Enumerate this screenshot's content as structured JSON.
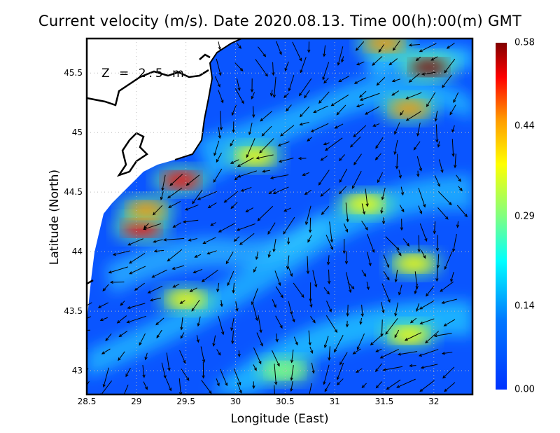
{
  "title": "Current velocity (m/s). Date 2020.08.13. Time 00(h):00(m) GMT",
  "depth_label": "Z = 2.5 m",
  "x_axis": {
    "label": "Longitude (East)",
    "ticks": [
      "28.5",
      "29",
      "29.5",
      "30",
      "30.5",
      "31",
      "31.5",
      "32"
    ],
    "range": [
      28.5,
      32.39
    ]
  },
  "y_axis": {
    "label": "Latitude (North)",
    "ticks": [
      "45.5",
      "45",
      "44.5",
      "44",
      "43.5",
      "43"
    ],
    "range": [
      42.8,
      45.79
    ]
  },
  "colorbar": {
    "ticks": [
      "0.58",
      "0.44",
      "0.29",
      "0.14",
      "0.00"
    ],
    "min": 0.0,
    "max": 0.58,
    "colors": [
      "#0033ff",
      "#0099ff",
      "#00ffff",
      "#80ff80",
      "#ffff00",
      "#ff9900",
      "#ff0000",
      "#800000"
    ]
  },
  "hotspots": [
    {
      "lon": 31.95,
      "lat": 45.55,
      "speed": 0.55
    },
    {
      "lon": 31.75,
      "lat": 45.2,
      "speed": 0.45
    },
    {
      "lon": 29.45,
      "lat": 44.6,
      "speed": 0.52
    },
    {
      "lon": 29.05,
      "lat": 44.2,
      "speed": 0.5
    },
    {
      "lon": 29.1,
      "lat": 44.35,
      "speed": 0.42
    },
    {
      "lon": 31.75,
      "lat": 43.3,
      "speed": 0.36
    },
    {
      "lon": 31.8,
      "lat": 43.9,
      "speed": 0.35
    },
    {
      "lon": 31.5,
      "lat": 45.75,
      "speed": 0.38
    },
    {
      "lon": 30.2,
      "lat": 44.8,
      "speed": 0.32
    },
    {
      "lon": 29.5,
      "lat": 43.6,
      "speed": 0.3
    },
    {
      "lon": 31.3,
      "lat": 44.4,
      "speed": 0.3
    },
    {
      "lon": 30.5,
      "lat": 43.0,
      "speed": 0.28
    }
  ]
}
